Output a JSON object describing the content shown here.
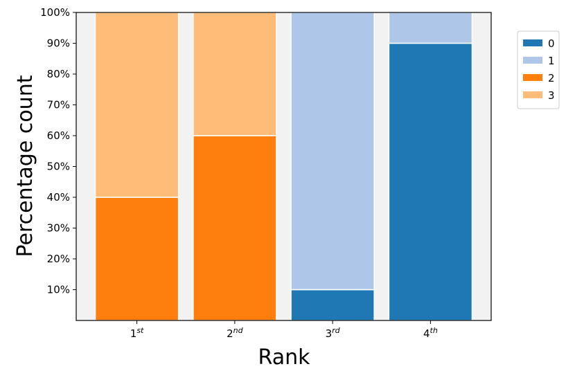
{
  "chart_data": {
    "type": "stacked_bar",
    "x_label": "Rank",
    "y_label": "Percentage count",
    "categories": [
      "1st",
      "2nd",
      "3rd",
      "4th"
    ],
    "series": [
      {
        "name": "0",
        "color": "#1f77b4",
        "values": [
          0,
          0,
          10,
          90
        ]
      },
      {
        "name": "1",
        "color": "#aec7e8",
        "values": [
          0,
          0,
          90,
          10
        ]
      },
      {
        "name": "2",
        "color": "#ff7f0e",
        "values": [
          40,
          60,
          0,
          0
        ]
      },
      {
        "name": "3",
        "color": "#ffbb78",
        "values": [
          60,
          40,
          0,
          0
        ]
      }
    ],
    "ylim": [
      0,
      100
    ],
    "yticks": [
      {
        "value": 10,
        "label": "10%"
      },
      {
        "value": 20,
        "label": "20%"
      },
      {
        "value": 30,
        "label": "30%"
      },
      {
        "value": 40,
        "label": "40%"
      },
      {
        "value": 50,
        "label": "50%"
      },
      {
        "value": 60,
        "label": "60%"
      },
      {
        "value": 70,
        "label": "70%"
      },
      {
        "value": 80,
        "label": "80%"
      },
      {
        "value": 90,
        "label": "90%"
      },
      {
        "value": 100,
        "label": "100%"
      }
    ],
    "legend": "outside-upper-right",
    "background": "#f2f2f2"
  }
}
